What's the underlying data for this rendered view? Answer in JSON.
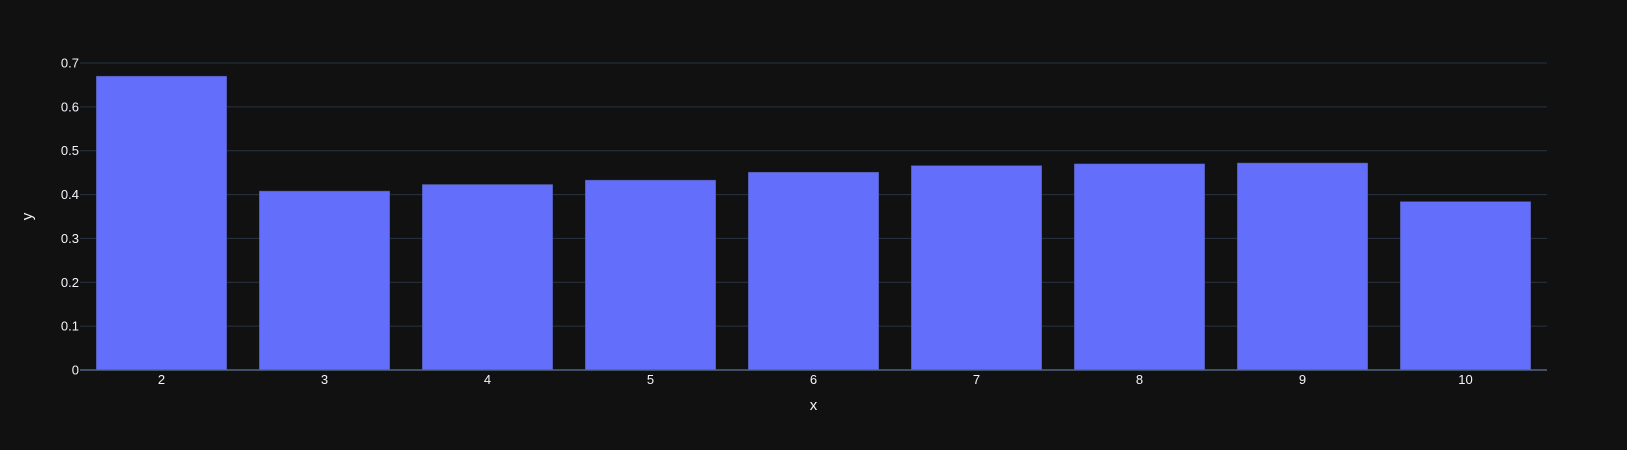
{
  "colors": {
    "background": "#111111",
    "plot_background": "#111111",
    "grid": "#283442",
    "axis_line": "#506784",
    "bar_fill": "#636efa",
    "bar_stroke": "#4b5387",
    "text": "#f2f5fa"
  },
  "chart_data": {
    "type": "bar",
    "categories": [
      "2",
      "3",
      "4",
      "5",
      "6",
      "7",
      "8",
      "9",
      "10"
    ],
    "values": [
      0.67,
      0.408,
      0.423,
      0.433,
      0.451,
      0.466,
      0.47,
      0.472,
      0.384
    ],
    "title": "",
    "xlabel": "x",
    "ylabel": "y",
    "ylim": [
      0,
      0.7
    ],
    "yticks": [
      0,
      0.1,
      0.2,
      0.3,
      0.4,
      0.5,
      0.6,
      0.7
    ],
    "ytick_labels": [
      "0",
      "0.1",
      "0.2",
      "0.3",
      "0.4",
      "0.5",
      "0.6",
      "0.7"
    ],
    "grid": true,
    "legend": "none"
  }
}
